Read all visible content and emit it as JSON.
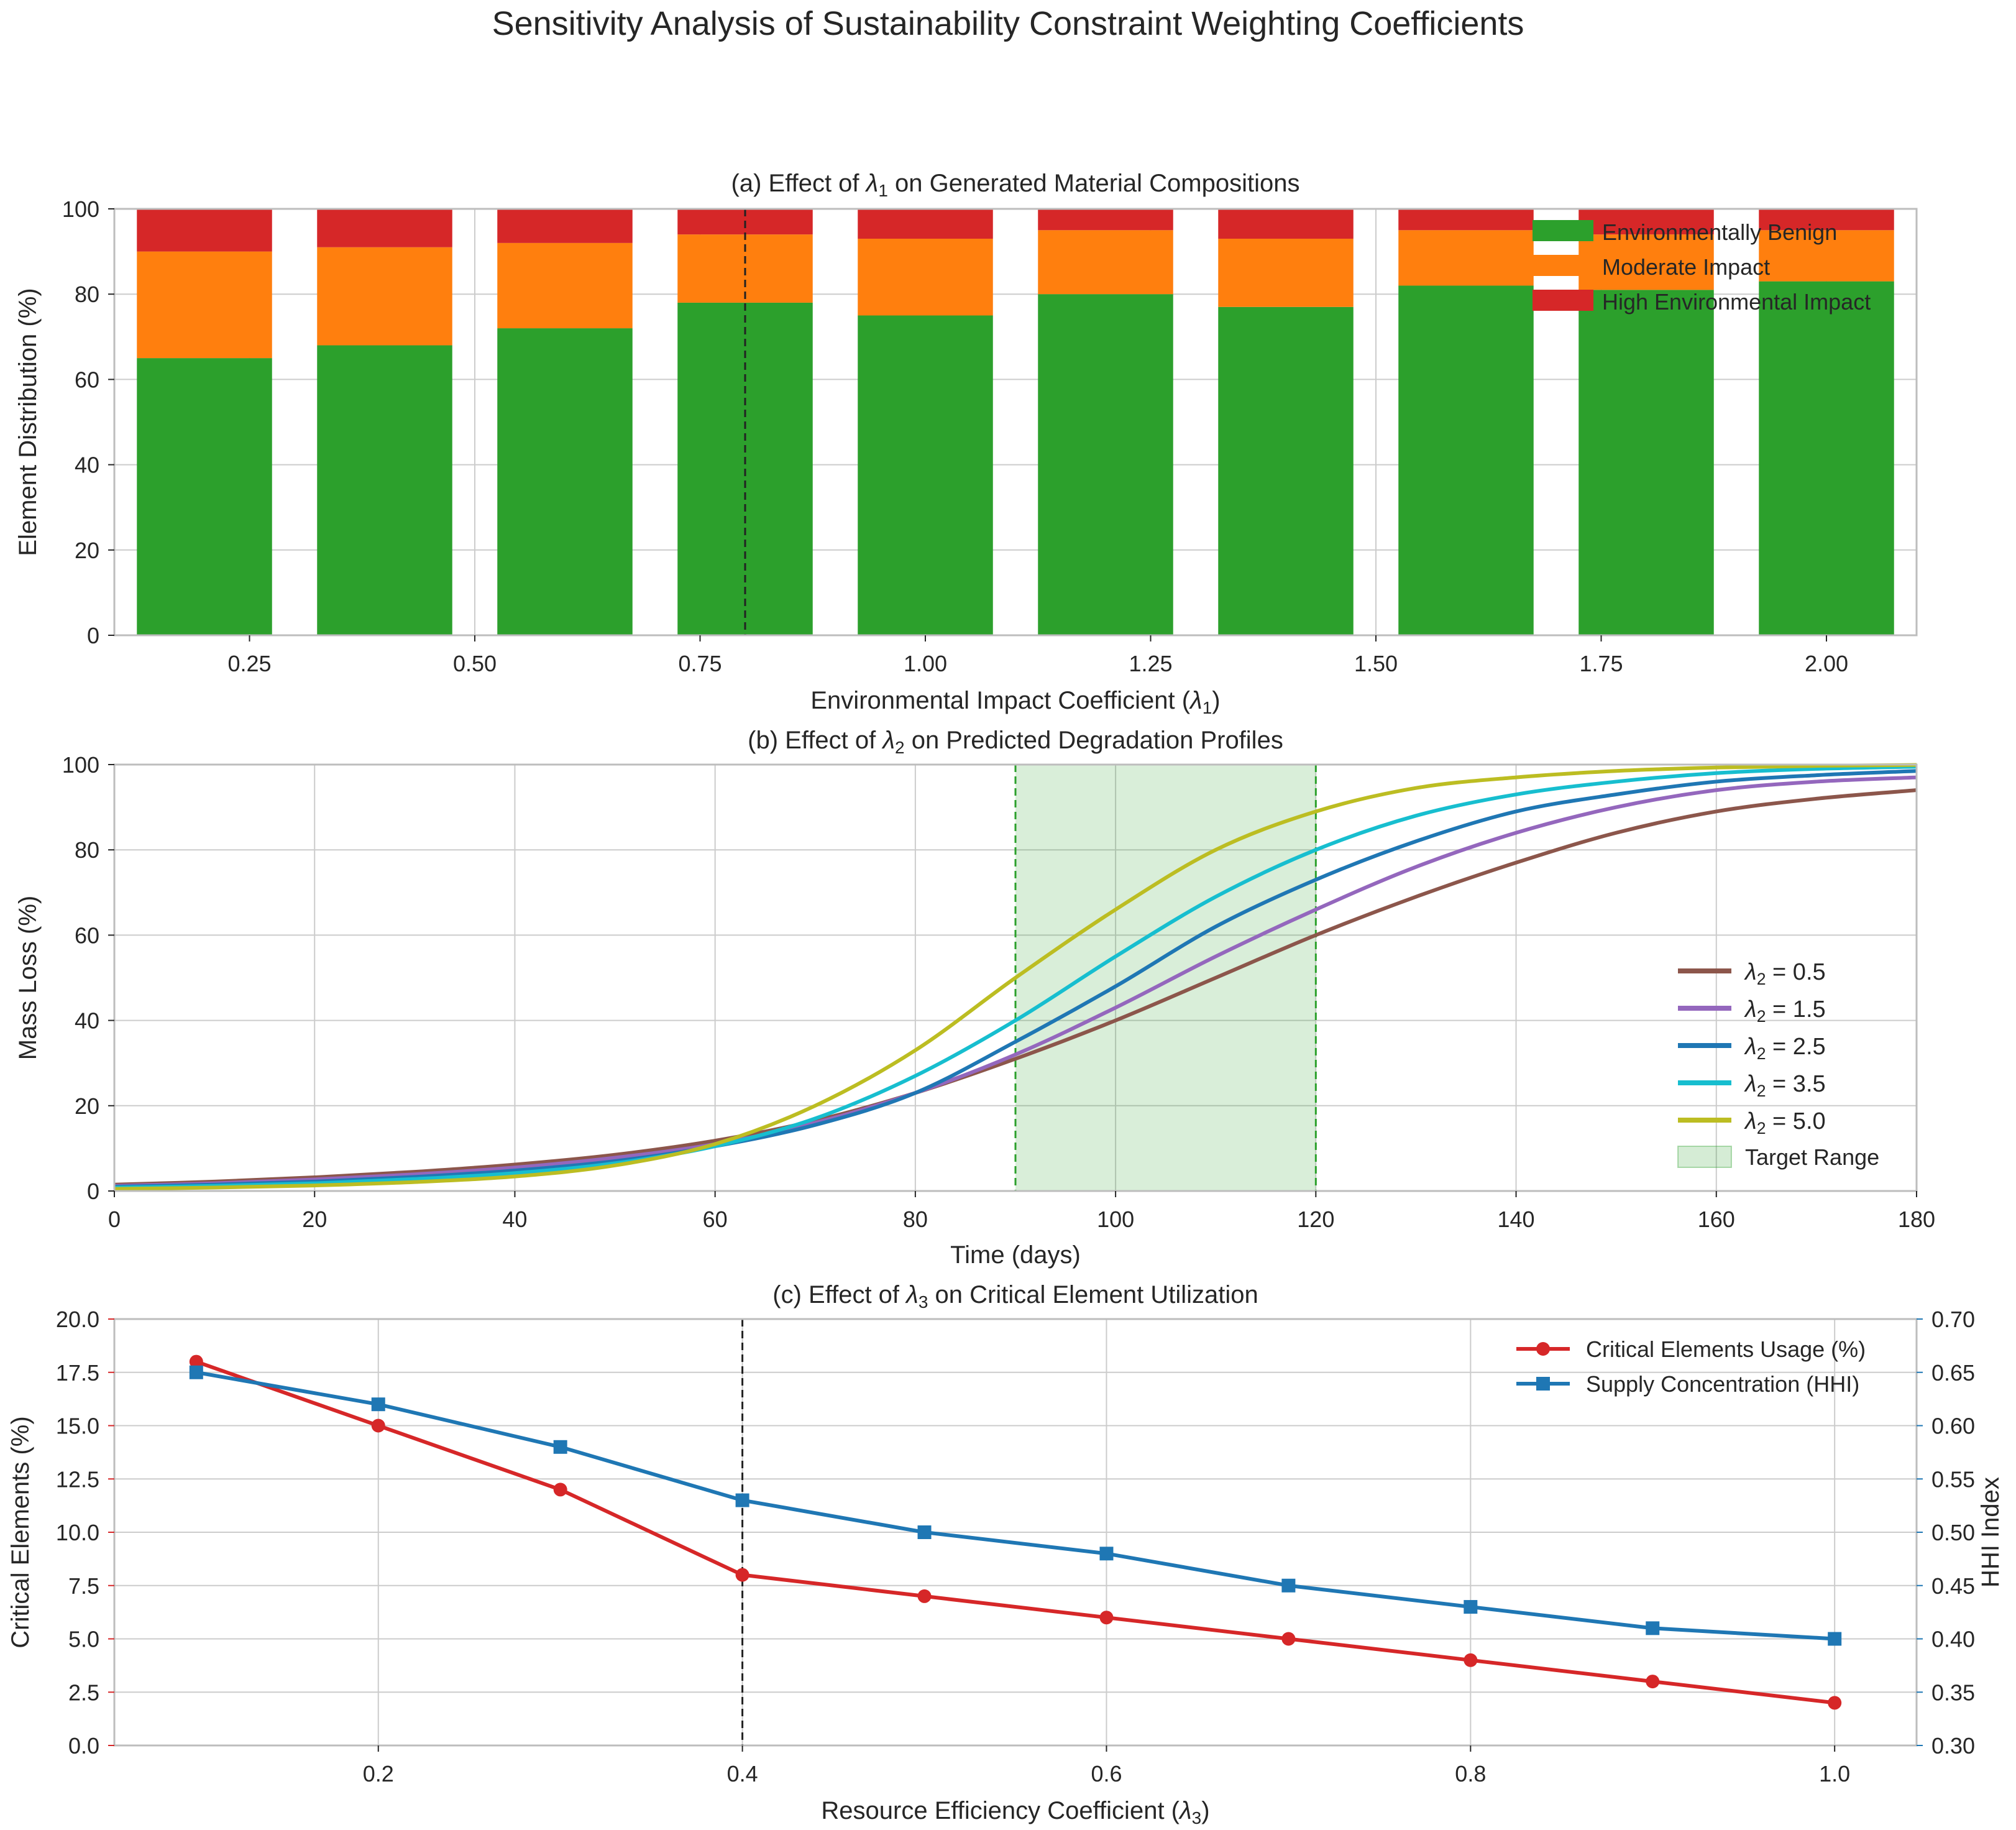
{
  "figure": {
    "title": "Sensitivity Analysis of Sustainability Constraint Weighting Coefficients"
  },
  "chart_data": [
    {
      "type": "bar",
      "stacked": true,
      "title": "(a) Effect of λ1 on Generated Material Compositions",
      "title_parts": {
        "pre": "(a) Effect of ",
        "sym": "λ",
        "sub": "1",
        "post": " on Generated Material Compositions"
      },
      "xlabel": "Environmental Impact Coefficient (λ1)",
      "xlabel_parts": {
        "pre": "Environmental Impact Coefficient (",
        "sym": "λ",
        "sub": "1",
        "post": ")"
      },
      "ylabel": "Element Distribution (%)",
      "x": [
        0.2,
        0.4,
        0.6,
        0.8,
        1.0,
        1.2,
        1.4,
        1.6,
        1.8,
        2.0
      ],
      "xlim": [
        0.1,
        2.1
      ],
      "ylim": [
        0,
        100
      ],
      "xticks": [
        0.25,
        0.5,
        0.75,
        1.0,
        1.25,
        1.5,
        1.75,
        2.0
      ],
      "xtick_labels": [
        "0.25",
        "0.50",
        "0.75",
        "1.00",
        "1.25",
        "1.50",
        "1.75",
        "2.00"
      ],
      "yticks": [
        0,
        20,
        40,
        60,
        80,
        100
      ],
      "bar_width": 0.15,
      "series": [
        {
          "name": "Environmentally Benign",
          "color": "#2ca02c",
          "values": [
            65,
            68,
            72,
            78,
            75,
            80,
            77,
            82,
            81,
            83
          ]
        },
        {
          "name": "Moderate Impact",
          "color": "#ff7f0e",
          "values": [
            25,
            23,
            20,
            16,
            18,
            15,
            16,
            13,
            13,
            12
          ]
        },
        {
          "name": "High Environmental Impact",
          "color": "#d62728",
          "values": [
            10,
            9,
            8,
            6,
            7,
            5,
            7,
            5,
            6,
            5
          ]
        }
      ],
      "vline": 0.8,
      "grid": true,
      "legend_position": "top-right"
    },
    {
      "type": "line",
      "title": "(b) Effect of λ2 on Predicted Degradation Profiles",
      "title_parts": {
        "pre": "(b) Effect of ",
        "sym": "λ",
        "sub": "2",
        "post": " on Predicted Degradation Profiles"
      },
      "xlabel": "Time (days)",
      "ylabel": "Mass Loss (%)",
      "xlim": [
        0,
        180
      ],
      "ylim": [
        0,
        100
      ],
      "xticks": [
        0,
        20,
        40,
        60,
        80,
        100,
        120,
        140,
        160,
        180
      ],
      "yticks": [
        0,
        20,
        40,
        60,
        80,
        100
      ],
      "x": [
        0,
        10,
        20,
        30,
        40,
        50,
        60,
        70,
        80,
        90,
        100,
        110,
        120,
        130,
        140,
        150,
        160,
        170,
        180
      ],
      "series": [
        {
          "name": "λ2 = 0.5",
          "label_sym": "λ",
          "label_sub": "2",
          "label_val": " = 0.5",
          "color": "#8c564b",
          "values": [
            1.5,
            2.2,
            3.2,
            4.5,
            6.2,
            8.5,
            11.8,
            16.5,
            23,
            31,
            40,
            50,
            60,
            69,
            77,
            84,
            89,
            92,
            94
          ]
        },
        {
          "name": "λ2 = 1.5",
          "label_sym": "λ",
          "label_sub": "2",
          "label_val": " = 1.5",
          "color": "#9467bd",
          "values": [
            1.2,
            1.8,
            2.7,
            3.9,
            5.5,
            7.8,
            11,
            16,
            23,
            32,
            43,
            55,
            66,
            76,
            84,
            90,
            94,
            96,
            97
          ]
        },
        {
          "name": "λ2 = 2.5",
          "label_sym": "λ",
          "label_sub": "2",
          "label_val": " = 2.5",
          "color": "#1f77b4",
          "values": [
            1.0,
            1.5,
            2.2,
            3.3,
            4.8,
            7,
            10.5,
            15.5,
            23,
            35,
            48,
            62,
            73,
            82,
            89,
            93,
            96,
            97.5,
            98.5
          ]
        },
        {
          "name": "λ2 = 3.5",
          "label_sym": "λ",
          "label_sub": "2",
          "label_val": " = 3.5",
          "color": "#17becf",
          "values": [
            0.8,
            1.2,
            1.8,
            2.8,
            4.2,
            6.5,
            10.5,
            17,
            27,
            40,
            55,
            69,
            80,
            88,
            93,
            96,
            98,
            99,
            99.5
          ]
        },
        {
          "name": "λ2 = 5.0",
          "label_sym": "λ",
          "label_sub": "2",
          "label_val": " = 5.0",
          "color": "#bcbd22",
          "values": [
            0.5,
            0.8,
            1.3,
            2.1,
            3.4,
            6,
            11,
            20,
            33,
            50,
            66,
            80,
            89,
            94.5,
            97,
            98.5,
            99.3,
            99.7,
            99.9
          ]
        }
      ],
      "target_range": {
        "label": "Target Range",
        "x": [
          90,
          120
        ],
        "color": "#2ca02c"
      },
      "grid": true,
      "legend_position": "center-right"
    },
    {
      "type": "line",
      "dual_axis": true,
      "title": "(c) Effect of λ3 on Critical Element Utilization",
      "title_parts": {
        "pre": "(c) Effect of ",
        "sym": "λ",
        "sub": "3",
        "post": " on Critical Element Utilization"
      },
      "xlabel": "Resource Efficiency Coefficient (λ3)",
      "xlabel_parts": {
        "pre": "Resource Efficiency Coefficient (",
        "sym": "λ",
        "sub": "3",
        "post": ")"
      },
      "ylabel": "Critical Elements (%)",
      "y2label": "HHI Index",
      "x": [
        0.1,
        0.2,
        0.3,
        0.4,
        0.5,
        0.6,
        0.7,
        0.8,
        0.9,
        1.0
      ],
      "xlim": [
        0.055,
        1.045
      ],
      "xticks": [
        0.2,
        0.4,
        0.6,
        0.8,
        1.0
      ],
      "xtick_labels": [
        "0.2",
        "0.4",
        "0.6",
        "0.8",
        "1.0"
      ],
      "ylim": [
        0,
        20
      ],
      "yticks": [
        0,
        2.5,
        5,
        7.5,
        10,
        12.5,
        15,
        17.5,
        20
      ],
      "ytick_labels": [
        "0.0",
        "2.5",
        "5.0",
        "7.5",
        "10.0",
        "12.5",
        "15.0",
        "17.5",
        "20.0"
      ],
      "y2lim": [
        0.3,
        0.7
      ],
      "y2ticks": [
        0.3,
        0.35,
        0.4,
        0.45,
        0.5,
        0.55,
        0.6,
        0.65,
        0.7
      ],
      "y2tick_labels": [
        "0.30",
        "0.35",
        "0.40",
        "0.45",
        "0.50",
        "0.55",
        "0.60",
        "0.65",
        "0.70"
      ],
      "series": [
        {
          "name": "Critical Elements Usage (%)",
          "color": "#d62728",
          "marker": "circle",
          "axis": "left",
          "values": [
            18,
            15,
            12,
            8,
            7,
            6,
            5,
            4,
            3,
            2
          ]
        },
        {
          "name": "Supply Concentration (HHI)",
          "color": "#1f77b4",
          "marker": "square",
          "axis": "right",
          "values": [
            0.65,
            0.62,
            0.58,
            0.53,
            0.5,
            0.48,
            0.45,
            0.43,
            0.41,
            0.4
          ]
        }
      ],
      "vline": 0.4,
      "grid": true,
      "legend_position": "top-right"
    }
  ]
}
